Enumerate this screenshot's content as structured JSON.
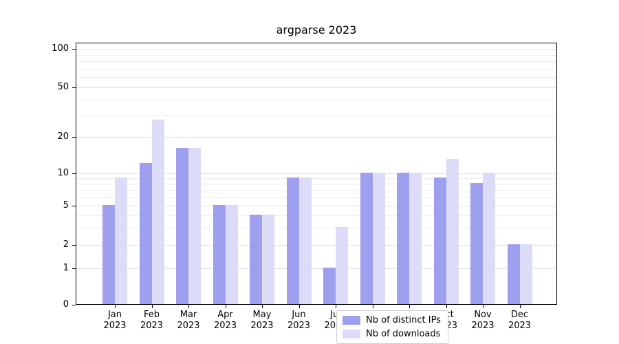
{
  "title": "argparse 2023",
  "colors": {
    "ips": "#9f9fef",
    "downloads": "#dcdcf9",
    "grid_major": "#e0e0e0",
    "grid_minor": "#ededed",
    "axis": "#000000",
    "background": "#ffffff"
  },
  "legend": {
    "items": [
      {
        "label": "Nb of distinct IPs",
        "color_key": "ips"
      },
      {
        "label": "Nb of downloads",
        "color_key": "downloads"
      }
    ]
  },
  "chart_data": {
    "type": "bar",
    "title": "argparse 2023",
    "categories": [
      "Jan 2023",
      "Feb 2023",
      "Mar 2023",
      "Apr 2023",
      "May 2023",
      "Jun 2023",
      "Jul 2023",
      "Aug 2023",
      "Sep 2023",
      "Oct 2023",
      "Nov 2023",
      "Dec 2023"
    ],
    "series": [
      {
        "name": "Nb of distinct IPs",
        "color_key": "ips",
        "values": [
          5,
          12,
          16,
          5,
          4,
          9,
          1,
          10,
          10,
          9,
          8,
          2
        ]
      },
      {
        "name": "Nb of downloads",
        "color_key": "downloads",
        "values": [
          9,
          27,
          16,
          5,
          4,
          9,
          3,
          10,
          10,
          13,
          10,
          2
        ]
      }
    ],
    "xlabel": "",
    "ylabel": "",
    "yscale": "log-like (symlog, linear below 1)",
    "yticks_major": [
      0,
      1,
      2,
      5,
      10,
      20,
      50,
      100
    ],
    "yticks_minor": [
      3,
      4,
      6,
      7,
      8,
      9,
      30,
      40,
      60,
      70,
      80,
      90
    ],
    "ylim": [
      0,
      110
    ],
    "grid": "horizontal major + minor, light gray",
    "legend_position": "lower center inside plot"
  }
}
